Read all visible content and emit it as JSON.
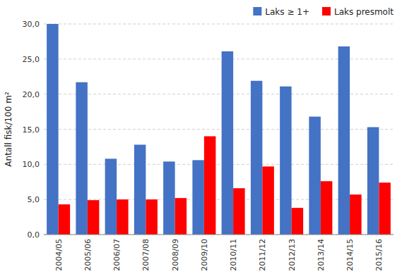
{
  "chart_data": {
    "type": "bar",
    "y_label": "Antall fisk/100 m²",
    "categories": [
      "2004/05",
      "2005/06",
      "2006/07",
      "2007/08",
      "2008/09",
      "2009/10",
      "2010/11",
      "2011/12",
      "2012/13",
      "2013/14",
      "2014/15",
      "2015/16"
    ],
    "series": [
      {
        "name": "Laks ≥ 1+",
        "color": "#4472C4",
        "values": [
          30.0,
          21.7,
          10.8,
          12.8,
          10.4,
          10.6,
          26.1,
          21.9,
          21.1,
          16.8,
          26.8,
          15.3
        ]
      },
      {
        "name": "Laks presmolt",
        "color": "#FF0000",
        "values": [
          4.3,
          4.9,
          5.0,
          5.0,
          5.2,
          14.0,
          6.6,
          9.7,
          3.8,
          7.6,
          5.7,
          7.4
        ]
      }
    ],
    "ylim": [
      0,
      30.0
    ],
    "yticks": [
      {
        "value": 0.0,
        "label": "0,0"
      },
      {
        "value": 5.0,
        "label": "5,0"
      },
      {
        "value": 10.0,
        "label": "10,0"
      },
      {
        "value": 15.0,
        "label": "15,0"
      },
      {
        "value": 20.0,
        "label": "20,0"
      },
      {
        "value": 25.0,
        "label": "25,0"
      },
      {
        "value": 30.0,
        "label": "30,0"
      }
    ],
    "grid": true,
    "legend": "upper right"
  }
}
